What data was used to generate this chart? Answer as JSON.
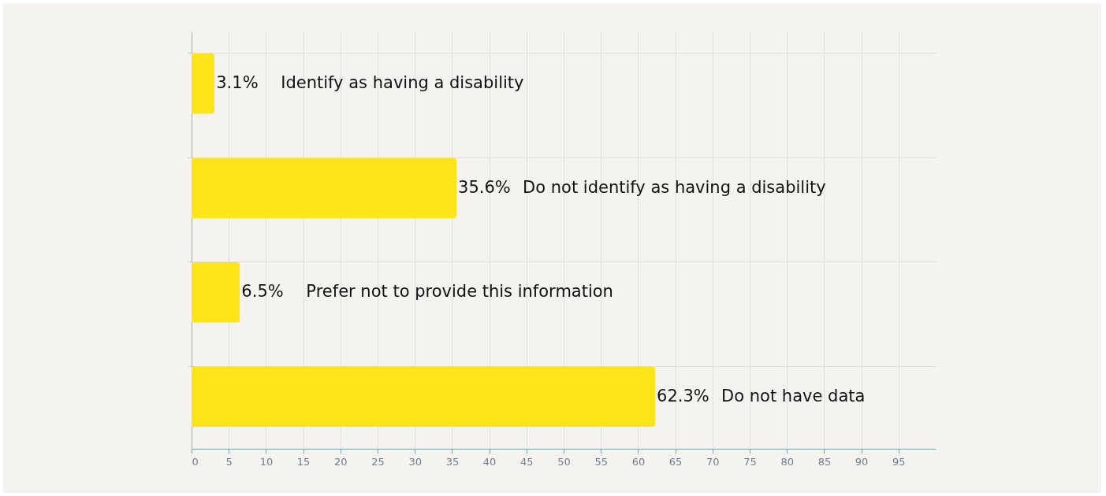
{
  "chart_data": {
    "type": "bar",
    "orientation": "horizontal",
    "categories": [
      "Identify as having a disability",
      "Do not identify as having a disability",
      "Prefer not to provide this information",
      "Do not have data"
    ],
    "values": [
      3.1,
      35.6,
      6.5,
      62.3
    ],
    "value_labels": [
      "3.1%",
      "35.6%",
      "6.5%",
      "62.3%"
    ],
    "color": "#fde51a",
    "xlim": [
      0,
      100
    ],
    "xticks": [
      0,
      5,
      10,
      15,
      20,
      25,
      30,
      35,
      40,
      45,
      50,
      55,
      60,
      65,
      70,
      75,
      80,
      85,
      90,
      95
    ],
    "grid": true
  }
}
